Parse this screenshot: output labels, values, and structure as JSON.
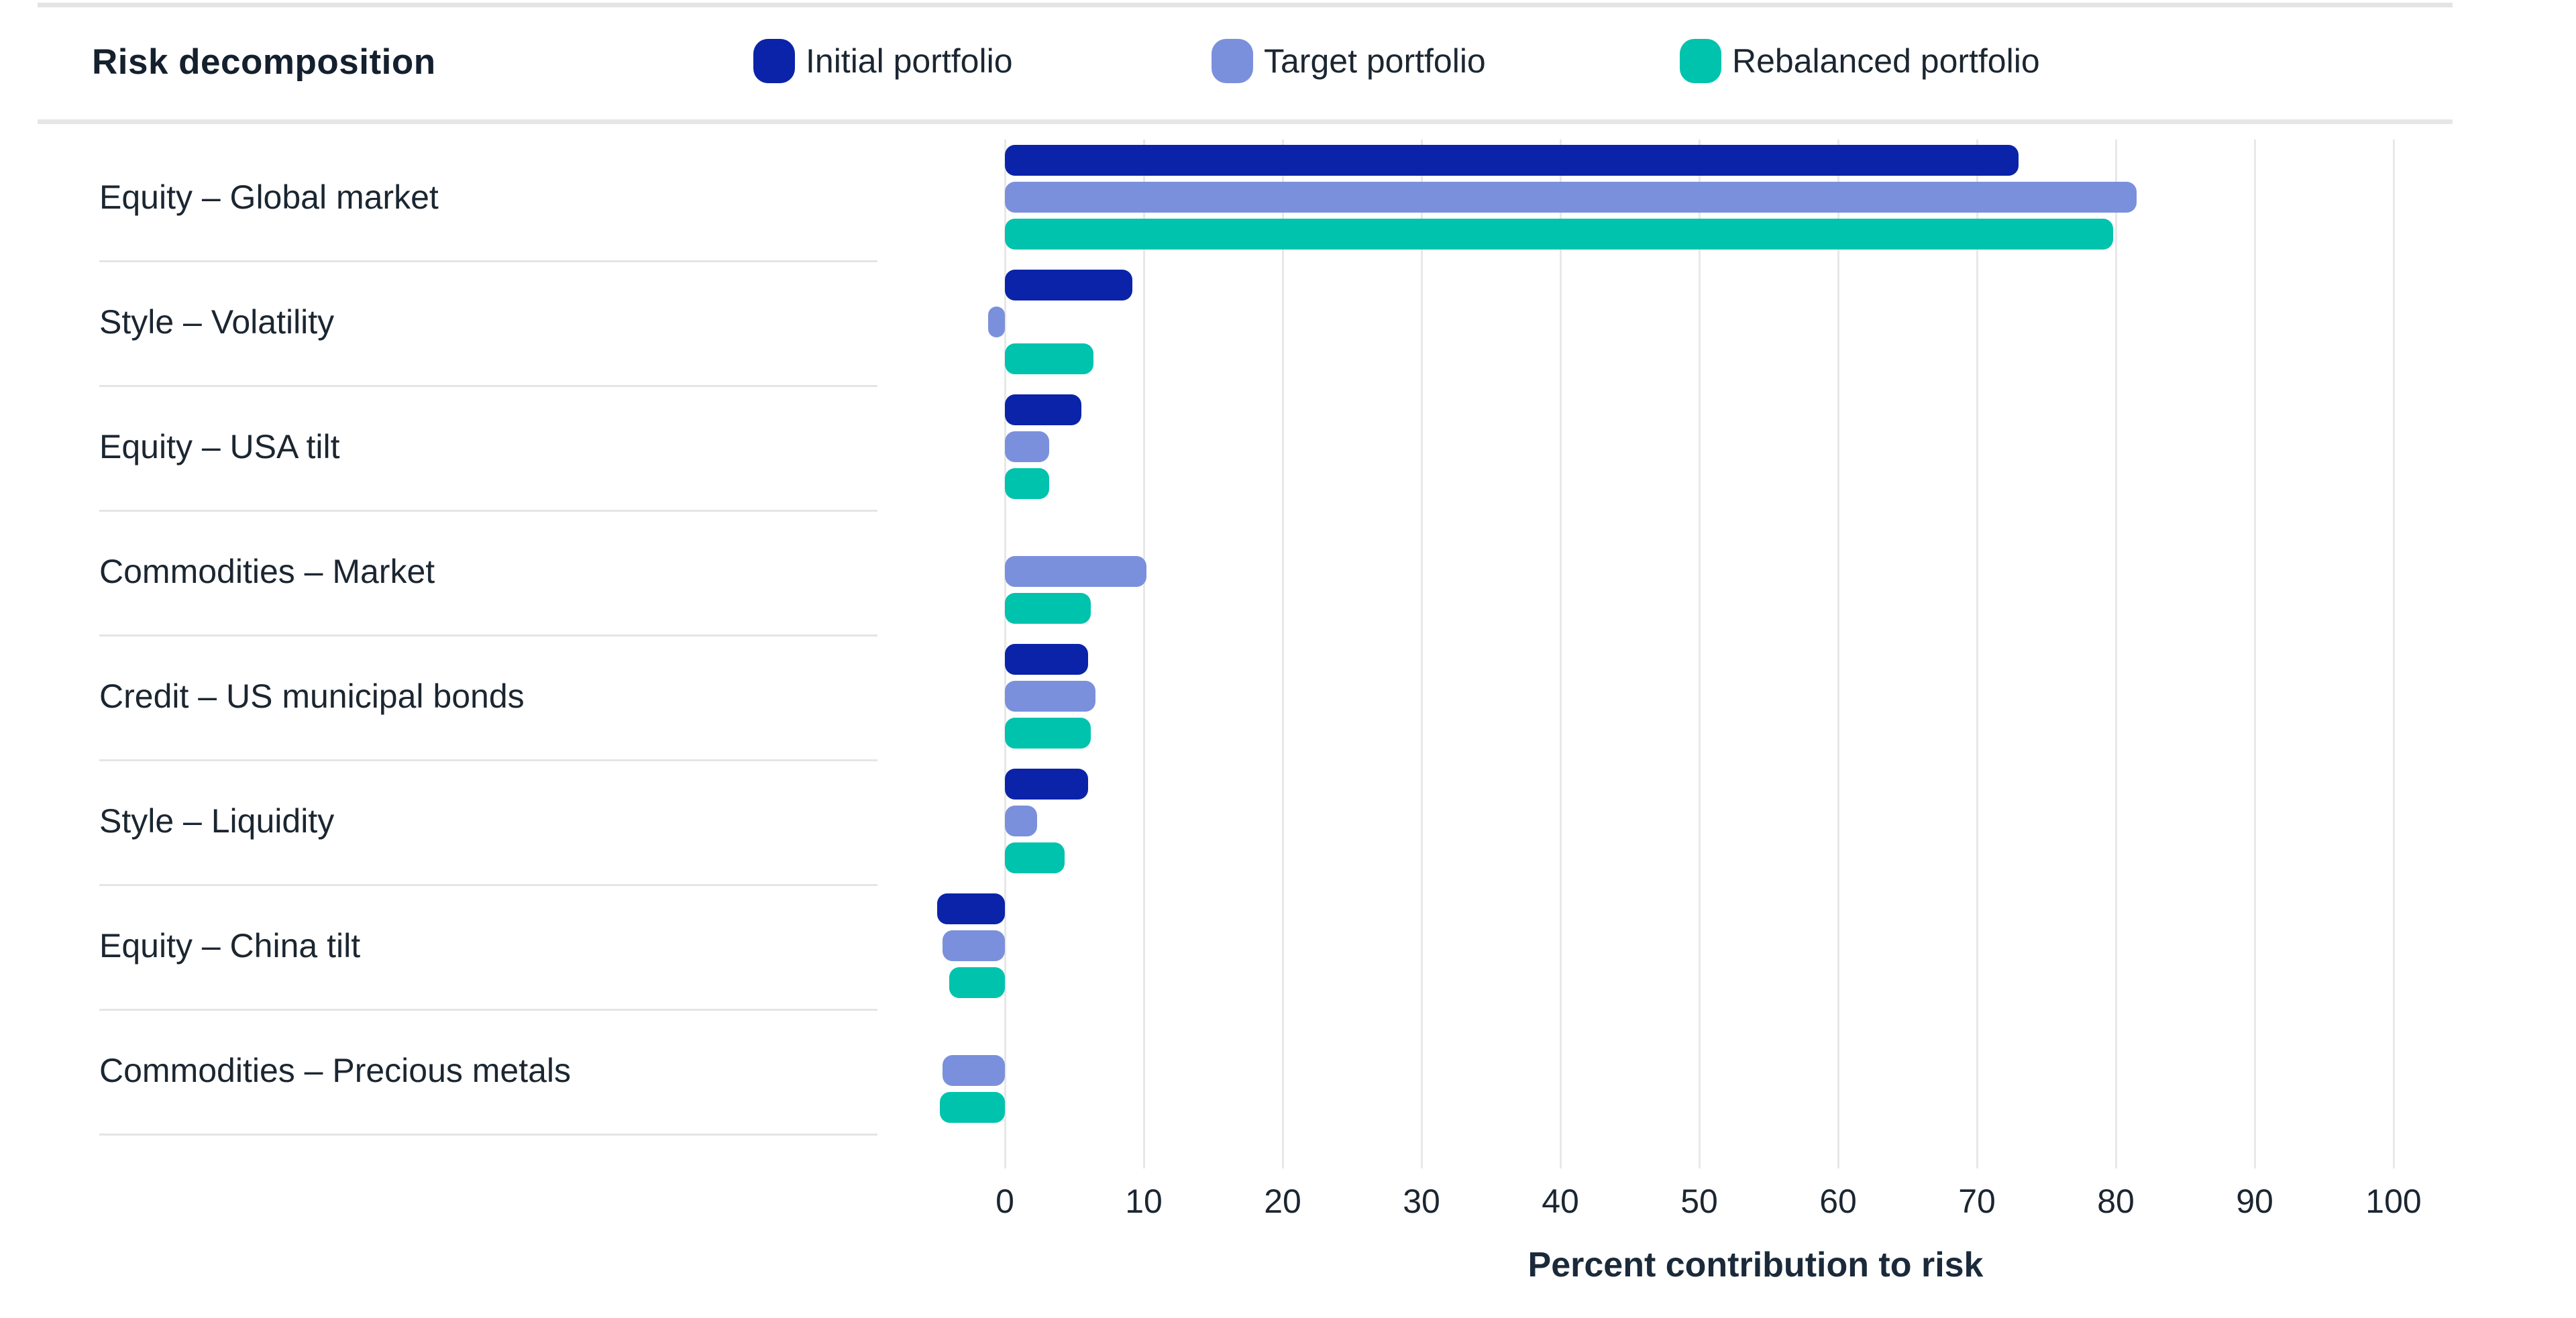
{
  "header": {
    "title": "Risk decomposition",
    "legend": [
      {
        "label": "Initial portfolio",
        "color": "#0B23A9"
      },
      {
        "label": "Target portfolio",
        "color": "#7B90DC"
      },
      {
        "label": "Rebalanced portfolio",
        "color": "#00C3AD"
      }
    ]
  },
  "chart_data": {
    "type": "bar",
    "orientation": "horizontal",
    "title": "Risk decomposition",
    "xlabel": "Percent contribution to risk",
    "ylabel": "",
    "xlim": [
      -8,
      108
    ],
    "x_ticks": [
      0,
      10,
      20,
      30,
      40,
      50,
      60,
      70,
      80,
      90,
      100
    ],
    "grid": "vertical",
    "legend_position": "top",
    "categories": [
      "Equity – Global market",
      "Style – Volatility",
      "Equity – USA tilt",
      "Commodities – Market",
      "Credit – US municipal bonds",
      "Style – Liquidity",
      "Equity – China tilt",
      "Commodities – Precious metals"
    ],
    "series": [
      {
        "name": "Initial portfolio",
        "color": "#0B23A9",
        "values": [
          73.0,
          9.2,
          5.5,
          0.0,
          6.0,
          6.0,
          -4.9,
          0.0
        ]
      },
      {
        "name": "Target portfolio",
        "color": "#7B90DC",
        "values": [
          81.5,
          -1.2,
          3.2,
          10.2,
          6.5,
          2.3,
          -4.5,
          -4.5
        ]
      },
      {
        "name": "Rebalanced portfolio",
        "color": "#00C3AD",
        "values": [
          79.8,
          6.4,
          3.2,
          6.2,
          6.2,
          4.3,
          -4.0,
          -4.7
        ]
      }
    ],
    "note_zero_values_mean_no_bar": true
  }
}
